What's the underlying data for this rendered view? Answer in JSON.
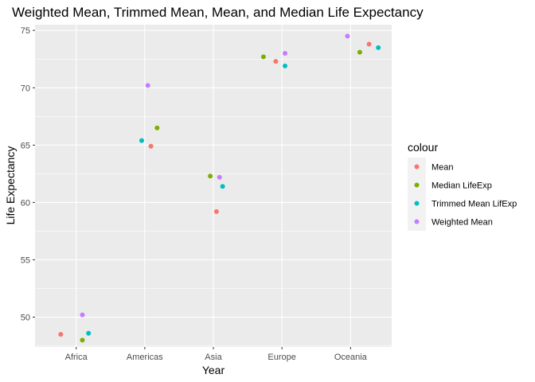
{
  "chart_data": {
    "type": "scatter",
    "title": "Weighted Mean, Trimmed Mean, Mean, and Median Life Expectancy",
    "xlabel": "Year",
    "ylabel": "Life Expectancy",
    "categories": [
      "Africa",
      "Americas",
      "Asia",
      "Europe",
      "Oceania"
    ],
    "ylim": [
      47.4,
      75.5
    ],
    "y_ticks": [
      50,
      55,
      60,
      65,
      70,
      75
    ],
    "grid": true,
    "legend": {
      "title": "colour",
      "placement": "right"
    },
    "series": [
      {
        "name": "Mean",
        "color": "#F8766D",
        "points": [
          {
            "x": "Africa",
            "y": 48.5
          },
          {
            "x": "Americas",
            "y": 64.9
          },
          {
            "x": "Asia",
            "y": 59.2
          },
          {
            "x": "Europe",
            "y": 72.3
          },
          {
            "x": "Oceania",
            "y": 73.8
          }
        ]
      },
      {
        "name": "Median LifeExp",
        "color": "#7CAE00",
        "points": [
          {
            "x": "Africa",
            "y": 48.0
          },
          {
            "x": "Americas",
            "y": 66.5
          },
          {
            "x": "Asia",
            "y": 62.3
          },
          {
            "x": "Europe",
            "y": 72.7
          },
          {
            "x": "Oceania",
            "y": 73.1
          }
        ]
      },
      {
        "name": "Trimmed Mean LifExp",
        "color": "#00BFC4",
        "points": [
          {
            "x": "Africa",
            "y": 48.6
          },
          {
            "x": "Americas",
            "y": 65.4
          },
          {
            "x": "Asia",
            "y": 61.4
          },
          {
            "x": "Europe",
            "y": 71.9
          },
          {
            "x": "Oceania",
            "y": 73.5
          }
        ]
      },
      {
        "name": "Weighted Mean",
        "color": "#C77CFF",
        "points": [
          {
            "x": "Africa",
            "y": 50.2
          },
          {
            "x": "Americas",
            "y": 70.2
          },
          {
            "x": "Asia",
            "y": 62.2
          },
          {
            "x": "Europe",
            "y": 73.0
          },
          {
            "x": "Oceania",
            "y": 74.5
          }
        ]
      }
    ]
  }
}
